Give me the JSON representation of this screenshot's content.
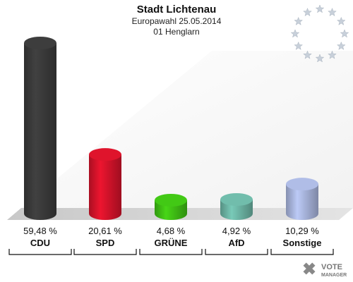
{
  "chart_data": {
    "type": "bar",
    "title": "Stadt Lichtenau",
    "subtitle": "Europawahl 25.05.2014",
    "subtitle2": "01 Henglarn",
    "categories": [
      "CDU",
      "SPD",
      "GRÜNE",
      "AfD",
      "Sonstige"
    ],
    "values": [
      59.48,
      20.61,
      4.68,
      4.92,
      10.29
    ],
    "value_labels": [
      "59,48 %",
      "20,61 %",
      "4,68 %",
      "4,92 %",
      "10,29 %"
    ],
    "colors": [
      "#3a3a3a",
      "#d4132a",
      "#3fbf14",
      "#6cb4a4",
      "#a8b4dc"
    ],
    "ylim": [
      0,
      60
    ],
    "grid": false,
    "legend": "none"
  },
  "branding": {
    "logo_line1": "VOTE",
    "logo_line2": "MANAGER",
    "emblem": "eu-stars-icon"
  }
}
